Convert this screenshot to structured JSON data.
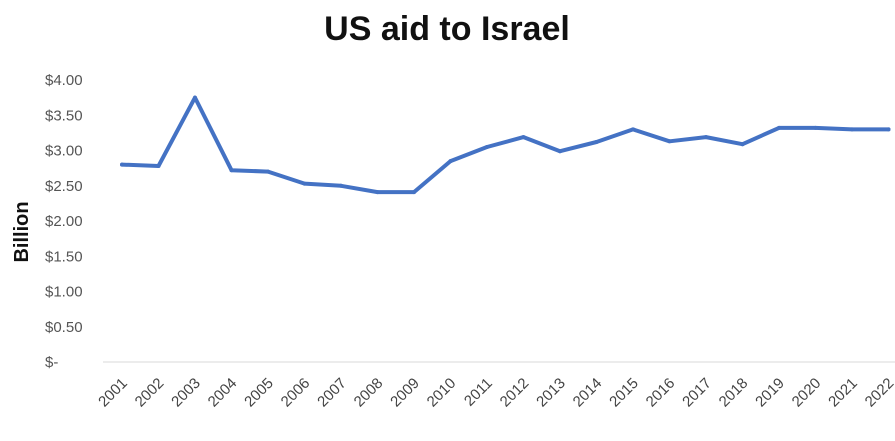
{
  "chart_data": {
    "type": "line",
    "title": "US aid to Israel",
    "ylabel": "Billion",
    "xlabel": "",
    "x": [
      "2001",
      "2002",
      "2003",
      "2004",
      "2005",
      "2006",
      "2007",
      "2008",
      "2009",
      "2010",
      "2011",
      "2012",
      "2013",
      "2014",
      "2015",
      "2016",
      "2017",
      "2018",
      "2019",
      "2020",
      "2021",
      "2022"
    ],
    "series": [
      {
        "values": [
          2.8,
          2.78,
          3.75,
          2.72,
          2.7,
          2.53,
          2.5,
          2.41,
          2.41,
          2.85,
          3.05,
          3.19,
          2.99,
          3.12,
          3.3,
          3.13,
          3.19,
          3.09,
          3.32,
          3.32,
          3.3,
          3.3
        ],
        "color": "#4472C4"
      }
    ],
    "ylim": [
      0,
      4
    ],
    "yticks": [
      0,
      0.5,
      1,
      1.5,
      2,
      2.5,
      3,
      3.5,
      4
    ],
    "ytick_labels": [
      "$-",
      "$0.50",
      "$1.00",
      "$1.50",
      "$2.00",
      "$2.50",
      "$3.00",
      "$3.50",
      "$4.00"
    ],
    "grid": false,
    "legend": "none"
  }
}
